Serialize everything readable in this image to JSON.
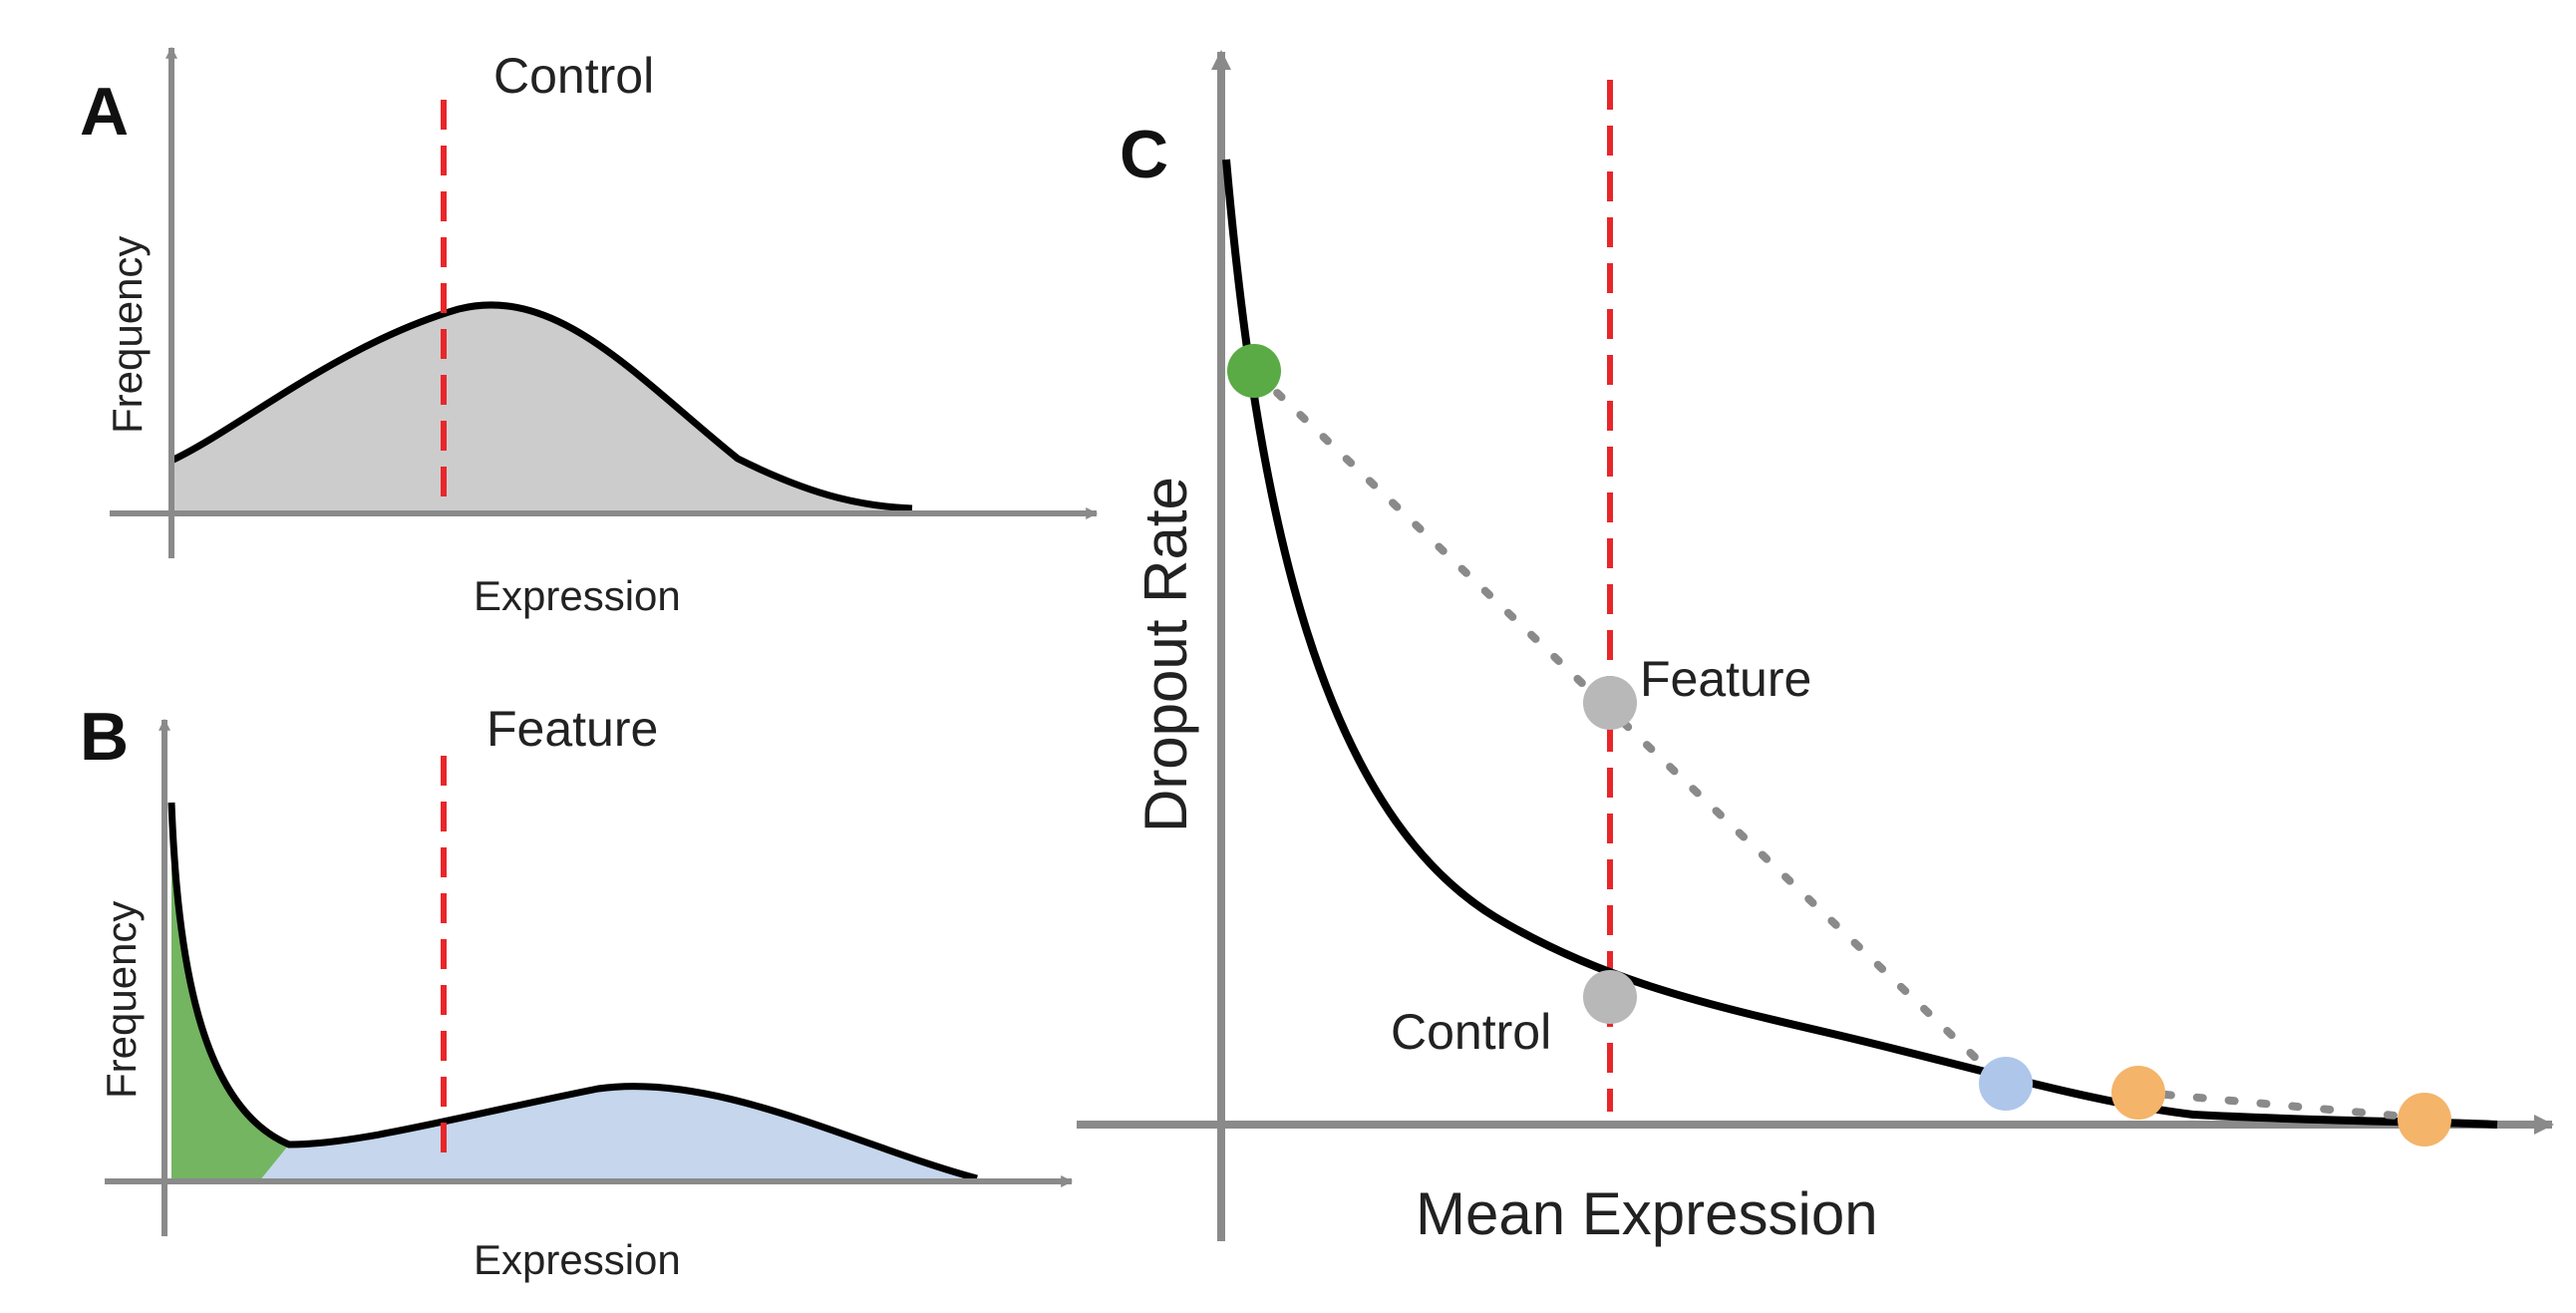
{
  "panels": {
    "a": {
      "letter": "A",
      "title": "Control",
      "xlabel": "Expression",
      "ylabel": "Frequency"
    },
    "b": {
      "letter": "B",
      "title": "Feature",
      "xlabel": "Expression",
      "ylabel": "Frequency"
    },
    "c": {
      "letter": "C",
      "xlabel": "Mean Expression",
      "ylabel": "Dropout Rate",
      "feature_label": "Feature",
      "control_label": "Control"
    }
  },
  "colors": {
    "axis": "#8a8a8a",
    "curve": "#000000",
    "threshold": "#e8262a",
    "fill_gray": "#cccccc",
    "fill_green": "#74b561",
    "fill_blue": "#c5d6ed",
    "point_green": "#5aab46",
    "point_gray": "#b8b8b8",
    "point_blue": "#aec6ea",
    "point_orange": "#f4b46a",
    "dotted_line": "#8a8a8a"
  }
}
